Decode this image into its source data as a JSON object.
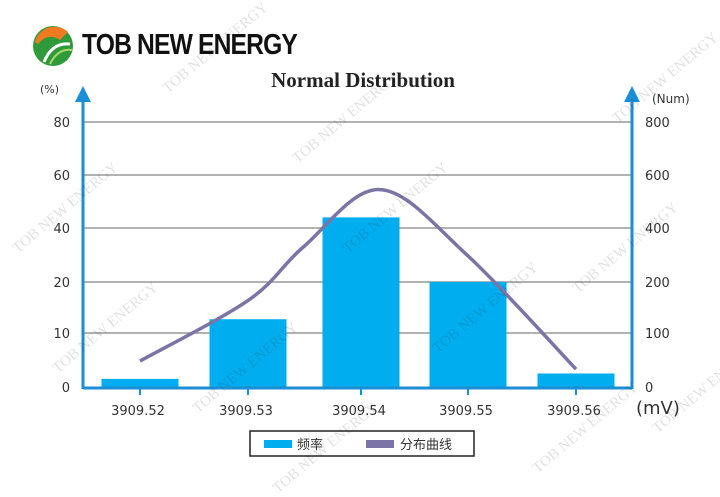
{
  "brand": {
    "name": "TOB NEW ENERGY",
    "watermark": "TOB NEW ENERGY"
  },
  "chart_data": {
    "type": "bar",
    "title": "Normal Distribution",
    "xlabel": "(mV)",
    "ylabel": "(%)",
    "y2label": "(Num)",
    "categories": [
      "3909.52",
      "3909.53",
      "3909.54",
      "3909.55",
      "3909.56"
    ],
    "y_ticks": [
      0,
      10,
      20,
      40,
      60,
      80
    ],
    "y2_ticks": [
      0,
      100,
      200,
      400,
      600,
      800
    ],
    "series": [
      {
        "name": "频率",
        "type": "bar",
        "axis": "left",
        "values": [
          1.5,
          12.7,
          44,
          20,
          2.5
        ],
        "color": "#00AEEF"
      },
      {
        "name": "分布曲线",
        "type": "line",
        "axis": "right",
        "color": "#7B74A6",
        "x": [
          3909.52,
          3909.53,
          3909.535,
          3909.542,
          3909.55,
          3909.56
        ],
        "values": [
          48,
          165,
          330,
          545,
          300,
          33
        ]
      }
    ],
    "grid": true,
    "legend": "bottom-center",
    "axis_color": "#1A8FD6"
  }
}
